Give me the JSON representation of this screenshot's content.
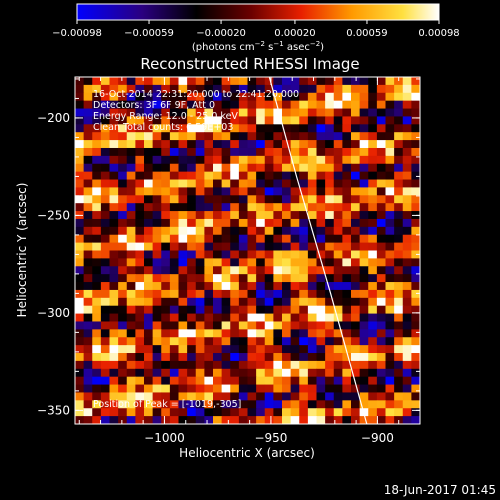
{
  "chart_data": {
    "type": "heatmap",
    "title": "Reconstructed RHESSI Image",
    "xlabel": "Heliocentric X (arcsec)",
    "ylabel": "Heliocentric Y (arcsec)",
    "xlim": [
      -1042,
      -880
    ],
    "ylim": [
      -357,
      -179
    ],
    "x_ticks": [
      -1000,
      -950,
      -900
    ],
    "x_tick_labels": [
      "−1000",
      "−950",
      "−900"
    ],
    "y_ticks": [
      -350,
      -300,
      -250,
      -200
    ],
    "y_tick_labels": [
      "−350",
      "−300",
      "−250",
      "−200"
    ],
    "colorbar": {
      "min": -0.00098,
      "max": 0.00098,
      "ticks": [
        -0.00098,
        -0.00059,
        -0.0002,
        0.0002,
        0.00059,
        0.00098
      ],
      "tick_labels": [
        "−0.00098",
        "−0.00059",
        "−0.00020",
        "0.00020",
        "0.00059",
        "0.00098"
      ],
      "unit_parts": {
        "pre": "(photons cm",
        "e1": "−2",
        "mid": " s",
        "e2": "−1",
        "mid2": " asec",
        "e3": "−2",
        "post": ")"
      },
      "colormap": "blue-black-red-yellow-white"
    },
    "annotations": {
      "time_range": "16-Oct-2014 22:31:20.000 to 22:41:20.000",
      "detectors": "Detectors: 3F 6F 9F, Att 0",
      "energy": "Energy Range: 12.0 - 25.0 keV",
      "clean": "Clean    Total counts: 6.59E+03",
      "peak": "Position of Peak = [-1019,-305]"
    },
    "limb_curve": [
      [
        -951,
        -178
      ],
      [
        -938,
        -230
      ],
      [
        -922,
        -290
      ],
      [
        -905,
        -357
      ]
    ],
    "grid_cells": {
      "nx": 40,
      "ny": 44
    },
    "footer": "18-Jun-2017 01:45"
  }
}
